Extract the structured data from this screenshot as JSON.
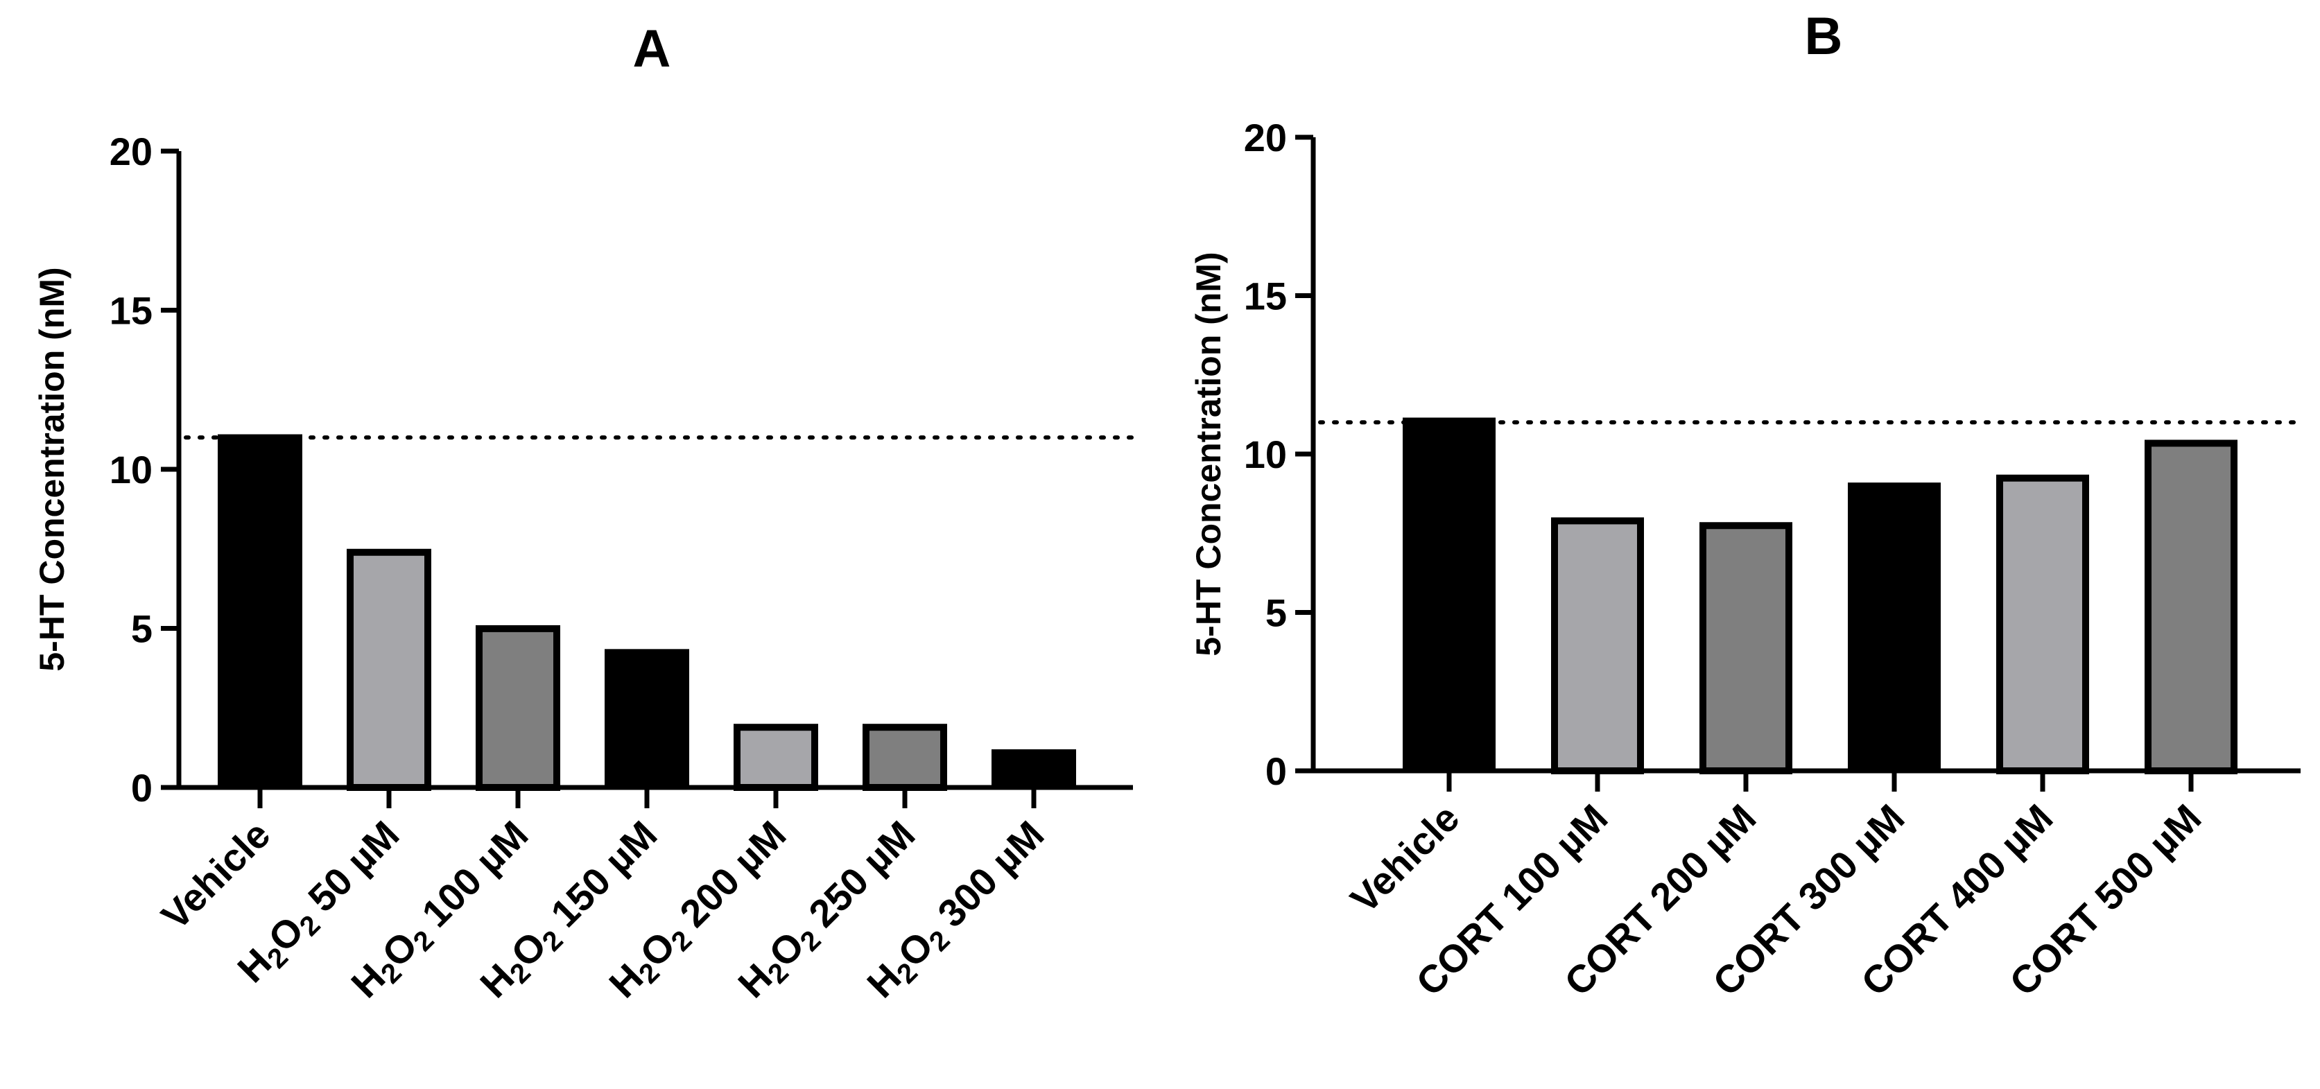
{
  "chart_data": [
    {
      "panel": "A",
      "type": "bar",
      "title": "A",
      "ylabel": "5-HT Concentration (nM)",
      "xlabel": "",
      "ylim": [
        0,
        20
      ],
      "yticks": [
        0,
        5,
        10,
        15,
        20
      ],
      "reference_line": 11,
      "categories": [
        {
          "prefix": "",
          "text": "Vehicle"
        },
        {
          "prefix": "H2O2",
          "text": "50 µM"
        },
        {
          "prefix": "H2O2",
          "text": "100 µM"
        },
        {
          "prefix": "H2O2",
          "text": "150 µM"
        },
        {
          "prefix": "H2O2",
          "text": "200 µM"
        },
        {
          "prefix": "H2O2",
          "text": "250 µM"
        },
        {
          "prefix": "H2O2",
          "text": "300 µM"
        }
      ],
      "values": [
        11.1,
        7.5,
        5.1,
        4.35,
        2.0,
        2.0,
        1.2
      ],
      "fills": [
        "#000000",
        "#a6a6aa",
        "#7f7f7f",
        "#000000",
        "#a6a6aa",
        "#7f7f7f",
        "#000000"
      ],
      "grid": false
    },
    {
      "panel": "B",
      "type": "bar",
      "title": "B",
      "ylabel": "5-HT Concentration (nM)",
      "xlabel": "",
      "ylim": [
        0,
        20
      ],
      "yticks": [
        0,
        5,
        10,
        15,
        20
      ],
      "reference_line": 11,
      "categories": [
        {
          "prefix": "",
          "text": "Vehicle"
        },
        {
          "prefix": "",
          "text": "CORT 100 µM"
        },
        {
          "prefix": "",
          "text": "CORT 200 µM"
        },
        {
          "prefix": "",
          "text": "CORT 300 µM"
        },
        {
          "prefix": "",
          "text": "CORT 400 µM"
        },
        {
          "prefix": "",
          "text": "CORT 500 µM"
        }
      ],
      "values": [
        11.15,
        8.0,
        7.85,
        9.1,
        9.35,
        10.45
      ],
      "fills": [
        "#000000",
        "#a6a6aa",
        "#7f7f7f",
        "#000000",
        "#a6a6aa",
        "#7f7f7f"
      ],
      "grid": false
    }
  ]
}
